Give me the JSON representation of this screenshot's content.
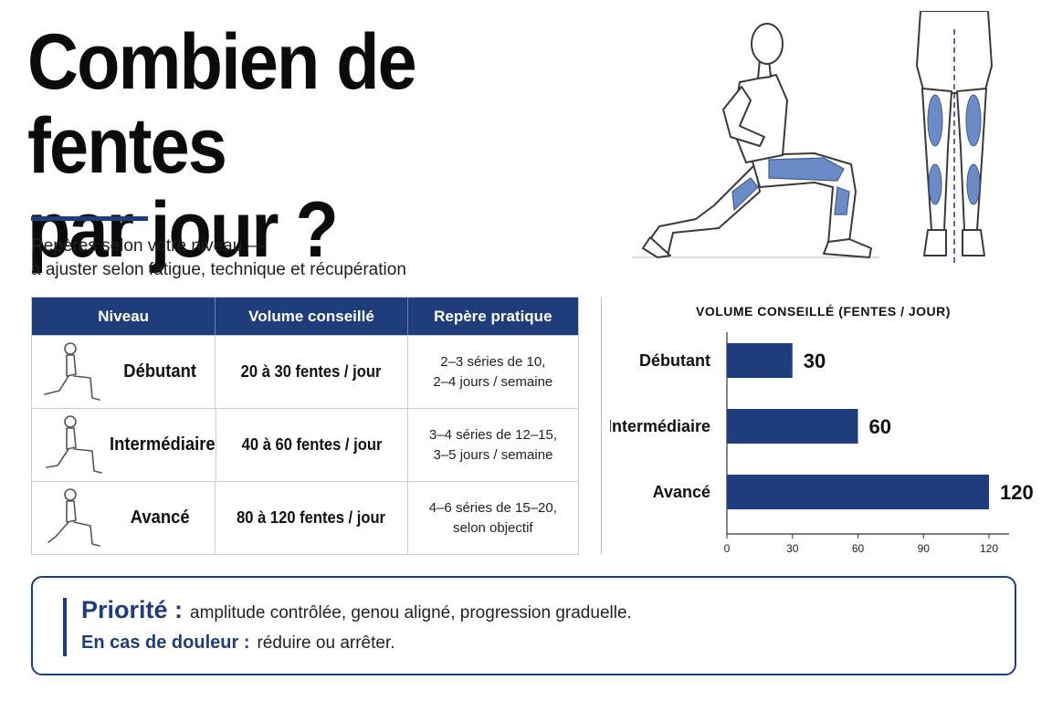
{
  "title": [
    "Combien de fentes",
    "par jour ?"
  ],
  "subtitle": [
    "Repères selon votre niveau —",
    "à ajuster selon fatigue, technique et récupération"
  ],
  "colors": {
    "accent": "#1f3d7a",
    "muscle": "#5a7fbf"
  },
  "table": {
    "headers": [
      "Niveau",
      "Volume conseillé",
      "Repère pratique"
    ],
    "rows": [
      {
        "level": "Débutant",
        "volume": "20 à 30 fentes / jour",
        "tip": [
          "2–3 séries de 10,",
          "2–4 jours / semaine"
        ]
      },
      {
        "level": "Intermédiaire",
        "volume": "40 à 60 fentes / jour",
        "tip": [
          "3–4 séries de 12–15,",
          "3–5 jours / semaine"
        ]
      },
      {
        "level": "Avancé",
        "volume": "80 à 120 fentes / jour",
        "tip": [
          "4–6 séries de 15–20,",
          "selon objectif"
        ]
      }
    ]
  },
  "chart_data": {
    "type": "bar",
    "orientation": "horizontal",
    "title": "VOLUME CONSEILLÉ (FENTES / JOUR)",
    "categories": [
      "Débutant",
      "Intermédiaire",
      "Avancé"
    ],
    "values": [
      30,
      60,
      120
    ],
    "xlim": [
      0,
      120
    ],
    "xticks": [
      0,
      30,
      60,
      90,
      120
    ],
    "grid": false,
    "bar_color": "#1f3d7a"
  },
  "note": {
    "priority_label": "Priorité :",
    "priority_text": "amplitude contrôlée, genou aligné, progression graduelle.",
    "pain_label": "En cas de douleur :",
    "pain_text": "réduire ou arrêter."
  },
  "icons": [
    "lunge-figure-illustration",
    "legs-back-view-illustration",
    "lunge-mini-icon"
  ]
}
